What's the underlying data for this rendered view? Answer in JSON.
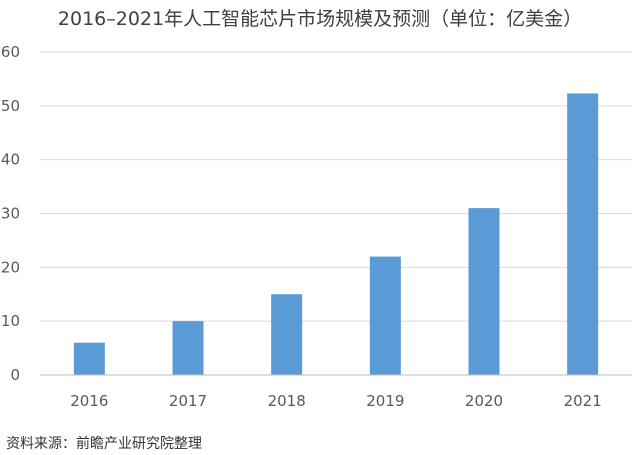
{
  "title": "2016–2021年人工智能芯片市场规模及预测（单位：亿美金）",
  "source": "资料来源：前瞻产业研究院整理",
  "chart_data": {
    "type": "bar",
    "title": "2016–2021年人工智能芯片市场规模及预测（单位：亿美金）",
    "categories": [
      "2016",
      "2017",
      "2018",
      "2019",
      "2020",
      "2021"
    ],
    "values": [
      6,
      10,
      15,
      22,
      31,
      52.3
    ],
    "xlabel": "",
    "ylabel": "",
    "ylim": [
      0,
      60
    ],
    "yticks": [
      "0",
      "10",
      "20",
      "30",
      "40",
      "50",
      "60"
    ],
    "grid": true,
    "legend": "none",
    "colors": {
      "bar": "#5B9BD5",
      "grid": "#D9D9D9",
      "axis": "#BFBFBF"
    }
  }
}
